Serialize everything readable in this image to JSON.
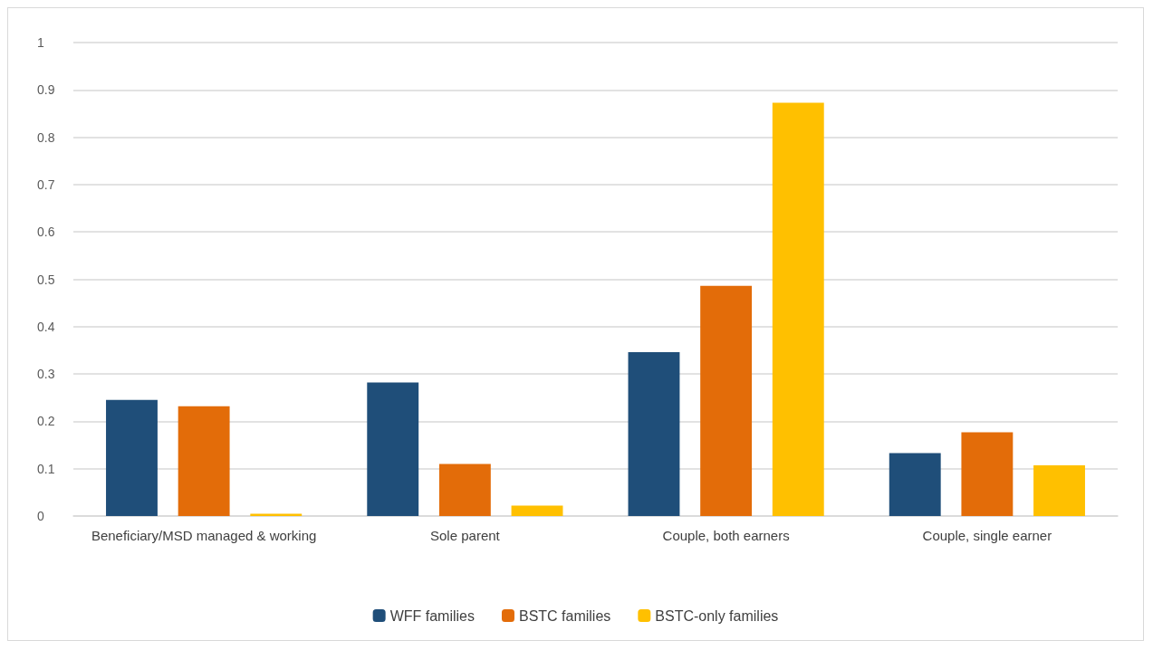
{
  "chart_data": {
    "type": "bar",
    "categories": [
      "Beneficiary/MSD managed & working",
      "Sole parent",
      "Couple, both earners",
      "Couple, single earner"
    ],
    "series": [
      {
        "name": "WFF families",
        "color": "#1f4e79",
        "values": [
          0.245,
          0.282,
          0.346,
          0.133
        ]
      },
      {
        "name": "BSTC families",
        "color": "#e36c09",
        "values": [
          0.232,
          0.11,
          0.486,
          0.177
        ]
      },
      {
        "name": "BSTC-only families",
        "color": "#ffc000",
        "values": [
          0.005,
          0.022,
          0.873,
          0.107
        ]
      }
    ],
    "ylim": [
      0,
      1
    ],
    "yticks": [
      0,
      0.1,
      0.2,
      0.3,
      0.4,
      0.5,
      0.6,
      0.7,
      0.8,
      0.9,
      1
    ],
    "grid": "y",
    "legend": "bottom"
  }
}
